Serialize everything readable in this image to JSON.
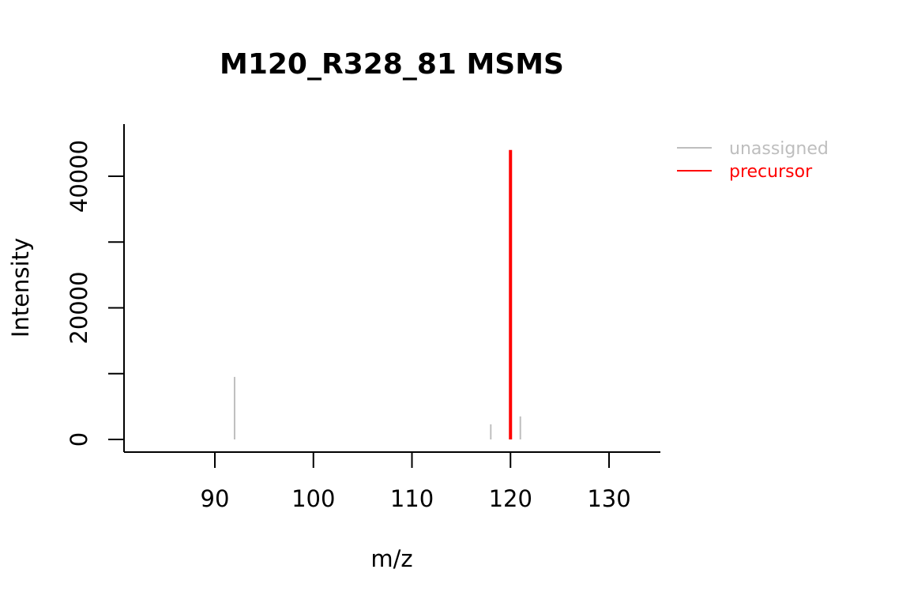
{
  "chart_data": {
    "type": "bar",
    "title": "M120_R328_81 MSMS",
    "xlabel": "m/z",
    "ylabel": "Intensity",
    "xlim": [
      81,
      135
    ],
    "ylim": [
      -1000,
      48000
    ],
    "x_ticks": [
      90,
      100,
      110,
      120,
      130
    ],
    "y_ticks": [
      0,
      10000,
      20000,
      30000,
      40000
    ],
    "y_tick_labels": [
      "0",
      "",
      "20000",
      "",
      "40000"
    ],
    "series": [
      {
        "name": "unassigned",
        "color": "#BEBEBE",
        "points": [
          {
            "x": 92.0,
            "y": 9500
          },
          {
            "x": 118.0,
            "y": 2300
          },
          {
            "x": 121.0,
            "y": 3500
          }
        ]
      },
      {
        "name": "precursor",
        "color": "#FF0000",
        "points": [
          {
            "x": 120.0,
            "y": 44000
          }
        ]
      }
    ],
    "legend": {
      "position": "top-right, outside plot",
      "entries": [
        {
          "label": "unassigned",
          "color": "#BEBEBE"
        },
        {
          "label": "precursor",
          "color": "#FF0000"
        }
      ]
    },
    "grid": false
  }
}
